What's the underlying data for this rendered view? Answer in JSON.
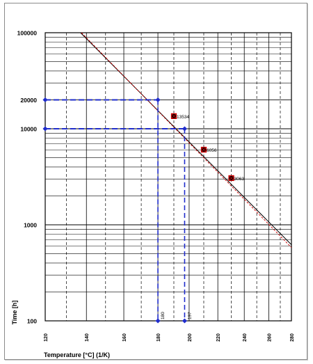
{
  "chart_data": {
    "type": "scatter",
    "title": "",
    "xlabel": "Temperature [°C]  (1/K)",
    "ylabel": "Time [h]",
    "x_scale": "reciprocal-kelvin",
    "y_scale": "log",
    "xlim": [
      120,
      280
    ],
    "ylim": [
      100,
      100000
    ],
    "grid": true,
    "x_tick_labels": [
      "120",
      "140",
      "160",
      "180",
      "200",
      "220",
      "240",
      "260",
      "280"
    ],
    "y_tick_labels": [
      "100",
      "1000",
      "10000",
      "20000",
      "100000"
    ],
    "series": [
      {
        "kind": "points",
        "color": "#cc0000",
        "points": [
          {
            "x": 190,
            "y": 13534,
            "label": "13534"
          },
          {
            "x": 210,
            "y": 6056,
            "label": "6056"
          },
          {
            "x": 230,
            "y": 3063,
            "label": "3063"
          }
        ]
      },
      {
        "kind": "regression-line",
        "color": "#000000",
        "from": {
          "x": 137,
          "y": 100000
        },
        "to": {
          "x": 280,
          "y": 620
        }
      },
      {
        "kind": "regression-line-dashed",
        "color": "#cc0000",
        "from": {
          "x": 137.5,
          "y": 100000
        },
        "to": {
          "x": 280,
          "y": 580
        }
      },
      {
        "kind": "reference",
        "color": "#1f2ccc",
        "time": 20000,
        "temperature": 180,
        "label": "180"
      },
      {
        "kind": "reference",
        "color": "#1f2ccc",
        "time": 10000,
        "temperature": 197,
        "label": "197"
      }
    ]
  }
}
